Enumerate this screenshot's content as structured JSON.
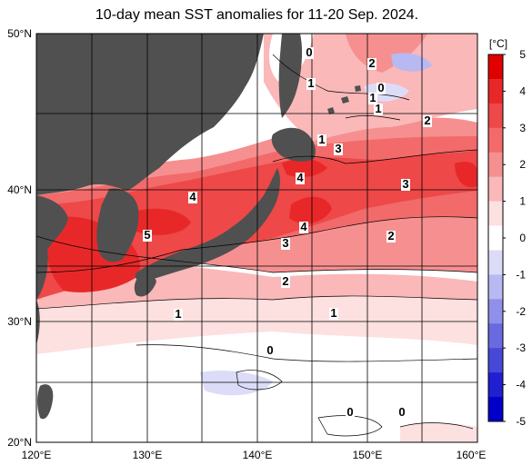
{
  "title": "10-day mean SST anomalies for 11-20 Sep. 2024.",
  "unit": "[°C]",
  "lat_labels": [
    "50°N",
    "40°N",
    "30°N",
    "20°N"
  ],
  "lon_labels": [
    "120°E",
    "130°E",
    "140°E",
    "150°E",
    "160°E"
  ],
  "colorbar": {
    "ticks": [
      "5",
      "4",
      "3",
      "2",
      "1",
      "0",
      "-1",
      "-2",
      "-3",
      "-4",
      "-5"
    ],
    "colors": [
      "#e00000",
      "#e82828",
      "#ee4848",
      "#f26a6a",
      "#f69090",
      "#fab8b8",
      "#fde0e0",
      "#ffffff",
      "#dcdcf8",
      "#b8b8f2",
      "#9090ea",
      "#6a6ae0",
      "#4848d8",
      "#2020d0",
      "#0000c8"
    ]
  },
  "contour_labels": [
    "0",
    "2",
    "1",
    "0",
    "1",
    "1",
    "2",
    "1",
    "3",
    "4",
    "4",
    "3",
    "5",
    "4",
    "3",
    "2",
    "2",
    "1",
    "1",
    "0",
    "0",
    "0"
  ],
  "colors": {
    "land": "#505050",
    "ocean_neutral": "#ffffff",
    "grid": "#000000"
  }
}
